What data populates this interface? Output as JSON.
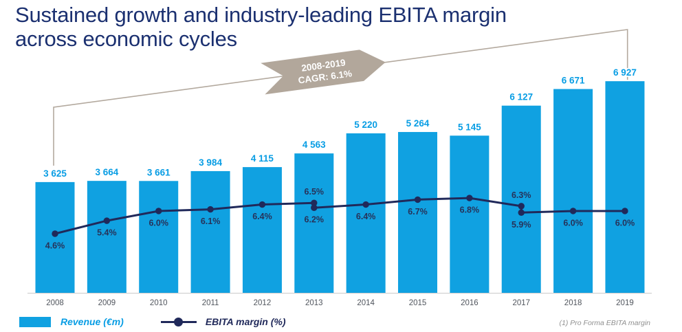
{
  "title": {
    "lines": [
      "Sustained growth and industry-leading EBITA margin",
      "across economic cycles"
    ]
  },
  "banner": {
    "line1": "2008-2019",
    "line2": "CAGR: 6.1%"
  },
  "legend": {
    "revenue_label": "Revenue (€m)",
    "ebita_label": "EBITA margin (%)"
  },
  "footnote": "(1) Pro Forma EBITA margin",
  "colors": {
    "bar": "#10a1e1",
    "bar_label": "#089de4",
    "line": "#20295a",
    "pct_label": "#273259",
    "year_label": "#50555d",
    "axis": "#c9c9c9",
    "banner": "#b2a79b",
    "bracket": "#b3a99e",
    "title": "#1b3070",
    "footnote": "#8f8f8f"
  },
  "chart_data": {
    "type": "bar+line",
    "title": "Revenue and EBITA margin 2008-2019",
    "annotation": "2008-2019 CAGR: 6.1%",
    "categories": [
      "2008",
      "2009",
      "2010",
      "2011",
      "2012",
      "2013",
      "2014",
      "2015",
      "2016",
      "2017",
      "2018",
      "2019"
    ],
    "grid": false,
    "legend_position": "bottom",
    "bar_ylim": [
      0,
      7000
    ],
    "series": [
      {
        "name": "Revenue (€m)",
        "type": "bar",
        "values": [
          3625,
          3664,
          3661,
          3984,
          4115,
          4563,
          5220,
          5264,
          5145,
          6127,
          6671,
          6927
        ],
        "display_labels": [
          "3 625",
          "3 664",
          "3 661",
          "3 984",
          "4 115",
          "4 563",
          "5 220",
          "5 264",
          "5 145",
          "6 127",
          "6 671",
          "6 927"
        ]
      },
      {
        "name": "EBITA margin (%)",
        "type": "line",
        "points": [
          {
            "year": "2008",
            "value": 4.6,
            "label": "4.6%",
            "label_pos": "below"
          },
          {
            "year": "2009",
            "value": 5.4,
            "label": "5.4%",
            "label_pos": "below"
          },
          {
            "year": "2010",
            "value": 6.0,
            "label": "6.0%",
            "label_pos": "below"
          },
          {
            "year": "2011",
            "value": 6.1,
            "label": "6.1%",
            "label_pos": "below"
          },
          {
            "year": "2012",
            "value": 6.4,
            "label": "6.4%",
            "label_pos": "below"
          },
          {
            "year": "2013",
            "value": 6.2,
            "label": "6.2%",
            "label_pos": "below",
            "pro_forma": {
              "value": 6.5,
              "label": "6.5%",
              "label_pos": "above"
            }
          },
          {
            "year": "2014",
            "value": 6.4,
            "label": "6.4%",
            "label_pos": "below"
          },
          {
            "year": "2015",
            "value": 6.7,
            "label": "6.7%",
            "label_pos": "below"
          },
          {
            "year": "2016",
            "value": 6.8,
            "label": "6.8%",
            "label_pos": "below"
          },
          {
            "year": "2017",
            "value": 5.9,
            "label": "5.9%",
            "label_pos": "below",
            "pro_forma": {
              "value": 6.3,
              "label": "6.3%",
              "label_pos": "above"
            }
          },
          {
            "year": "2018",
            "value": 6.0,
            "label": "6.0%",
            "label_pos": "below"
          },
          {
            "year": "2019",
            "value": 6.0,
            "label": "6.0%",
            "label_pos": "below"
          }
        ]
      }
    ]
  }
}
